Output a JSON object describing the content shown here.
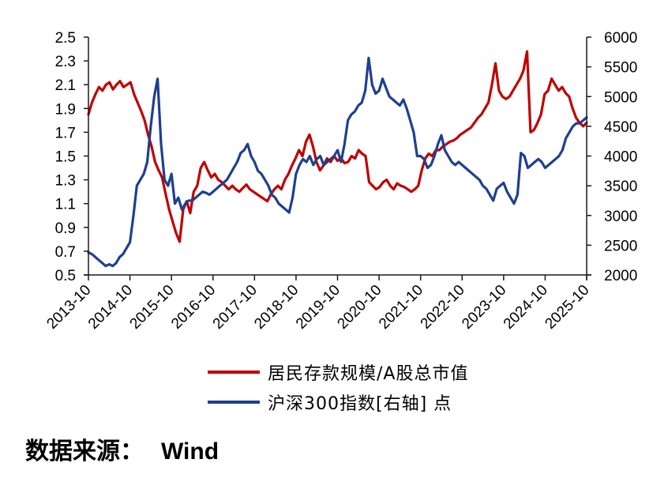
{
  "chart_data": {
    "type": "line",
    "title": "",
    "xlabel": "",
    "ylabel": "",
    "y2label": "",
    "x_ticks": [
      "2013-10",
      "2014-10",
      "2015-10",
      "2016-10",
      "2017-10",
      "2018-10",
      "2019-10",
      "2020-10",
      "2021-10",
      "2022-10",
      "2023-10",
      "2024-10",
      "2025-10"
    ],
    "ylim": [
      0.5,
      2.5
    ],
    "y_ticks": [
      "2.5",
      "2.3",
      "2.1",
      "1.9",
      "1.7",
      "1.5",
      "1.3",
      "1.1",
      "0.9",
      "0.7",
      "0.5"
    ],
    "y2lim": [
      2000,
      6000
    ],
    "y2_ticks": [
      "6000",
      "5500",
      "5000",
      "4500",
      "4000",
      "3500",
      "3000",
      "2500",
      "2000"
    ],
    "grid": false,
    "legend_position": "bottom",
    "x_start": "2013-10",
    "x_step": "month",
    "series": [
      {
        "name": "居民存款规模/A股总市值",
        "axis": "left",
        "color": "#C00000",
        "values": [
          1.85,
          1.95,
          2.02,
          2.08,
          2.05,
          2.1,
          2.12,
          2.06,
          2.1,
          2.13,
          2.08,
          2.1,
          2.12,
          2.02,
          1.95,
          1.88,
          1.8,
          1.68,
          1.58,
          1.45,
          1.38,
          1.32,
          1.18,
          1.05,
          0.95,
          0.85,
          0.78,
          1.05,
          1.12,
          1.02,
          1.2,
          1.25,
          1.4,
          1.45,
          1.38,
          1.32,
          1.35,
          1.3,
          1.28,
          1.25,
          1.22,
          1.25,
          1.22,
          1.2,
          1.23,
          1.26,
          1.22,
          1.2,
          1.18,
          1.16,
          1.14,
          1.12,
          1.18,
          1.22,
          1.25,
          1.22,
          1.3,
          1.35,
          1.42,
          1.48,
          1.55,
          1.5,
          1.62,
          1.68,
          1.58,
          1.45,
          1.38,
          1.42,
          1.48,
          1.45,
          1.5,
          1.46,
          1.48,
          1.44,
          1.45,
          1.5,
          1.48,
          1.55,
          1.52,
          1.5,
          1.28,
          1.25,
          1.22,
          1.24,
          1.28,
          1.3,
          1.25,
          1.22,
          1.27,
          1.25,
          1.24,
          1.22,
          1.2,
          1.22,
          1.25,
          1.38,
          1.48,
          1.52,
          1.5,
          1.55,
          1.55,
          1.58,
          1.6,
          1.62,
          1.63,
          1.65,
          1.68,
          1.7,
          1.72,
          1.74,
          1.78,
          1.82,
          1.85,
          1.9,
          1.95,
          2.1,
          2.28,
          2.05,
          2.0,
          1.98,
          2.0,
          2.05,
          2.1,
          2.15,
          2.22,
          2.38,
          1.7,
          1.72,
          1.78,
          1.85,
          2.02,
          2.05,
          2.15,
          2.1,
          2.05,
          2.08,
          2.03,
          2.0,
          1.9,
          1.82,
          1.78,
          1.75,
          1.78
        ]
      },
      {
        "name": "沪深300指数[右轴] 点",
        "axis": "right",
        "color": "#1F3F8F",
        "values": [
          2380,
          2350,
          2300,
          2250,
          2200,
          2150,
          2180,
          2150,
          2200,
          2300,
          2350,
          2450,
          2550,
          3000,
          3500,
          3600,
          3700,
          3900,
          4500,
          5000,
          5300,
          4200,
          3600,
          3500,
          3700,
          3200,
          3300,
          3100,
          3200,
          3250,
          3250,
          3300,
          3350,
          3400,
          3380,
          3350,
          3400,
          3450,
          3500,
          3550,
          3600,
          3700,
          3800,
          3900,
          4050,
          4100,
          4200,
          4000,
          3900,
          3750,
          3700,
          3600,
          3500,
          3350,
          3300,
          3200,
          3150,
          3100,
          3050,
          3300,
          3700,
          3850,
          3950,
          3900,
          4000,
          3850,
          3950,
          4000,
          3850,
          3900,
          3950,
          4000,
          4100,
          3900,
          4200,
          4600,
          4700,
          4750,
          4850,
          4900,
          5100,
          5650,
          5200,
          5050,
          5100,
          5300,
          5150,
          5000,
          4950,
          4900,
          4850,
          4950,
          4800,
          4600,
          4400,
          4000,
          4000,
          3950,
          3800,
          3850,
          4000,
          4200,
          4350,
          4100,
          4000,
          3900,
          3850,
          3900,
          3850,
          3800,
          3750,
          3700,
          3650,
          3600,
          3500,
          3450,
          3350,
          3250,
          3450,
          3500,
          3550,
          3400,
          3300,
          3200,
          3350,
          4050,
          4000,
          3800,
          3850,
          3900,
          3950,
          3900,
          3800,
          3850,
          3900,
          3950,
          4000,
          4100,
          4300,
          4400,
          4500,
          4550,
          4550,
          4600,
          4650
        ]
      }
    ]
  },
  "legend": {
    "items": [
      {
        "label": "居民存款规模/A股总市值",
        "color": "#C00000"
      },
      {
        "label": "沪深300指数[右轴] 点",
        "color": "#1F3F8F"
      }
    ]
  },
  "source": {
    "label": "数据来源：",
    "value": "Wind"
  }
}
